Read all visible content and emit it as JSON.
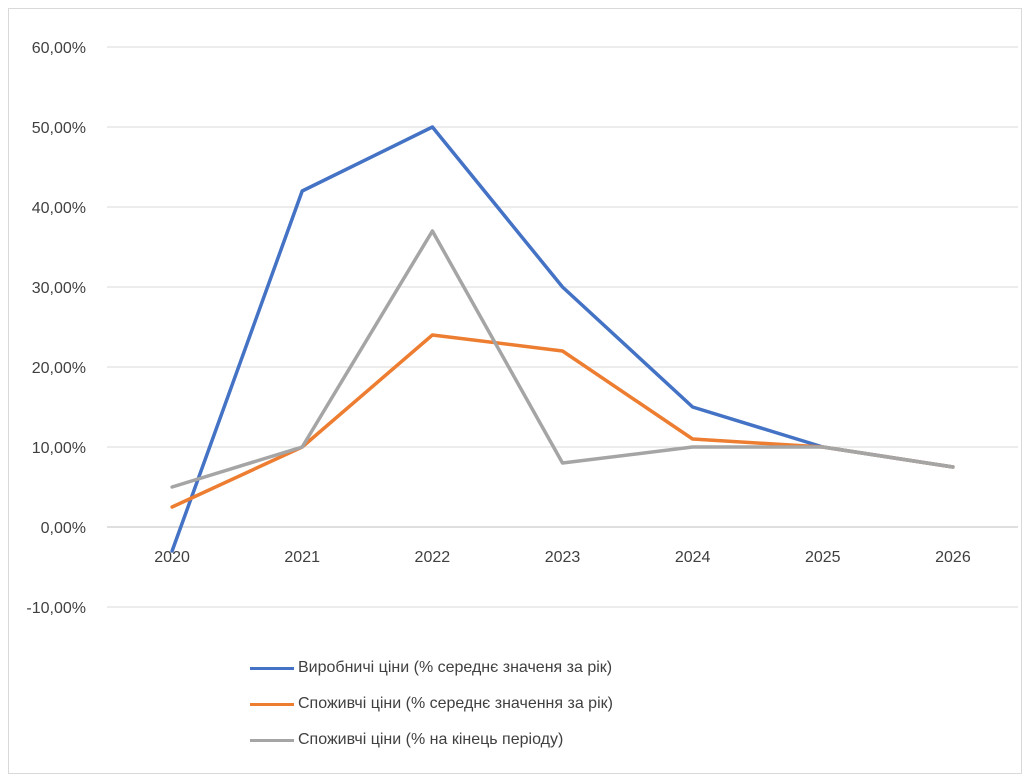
{
  "chart_data": {
    "type": "line",
    "title": "",
    "xlabel": "",
    "ylabel": "",
    "categories": [
      "2020",
      "2021",
      "2022",
      "2023",
      "2024",
      "2025",
      "2026"
    ],
    "ylim": [
      -0.1,
      0.6
    ],
    "y_ticks": [
      -0.1,
      0.0,
      0.1,
      0.2,
      0.3,
      0.4,
      0.5,
      0.6
    ],
    "y_tick_labels": [
      "-10,00%",
      "0,00%",
      "10,00%",
      "20,00%",
      "30,00%",
      "40,00%",
      "50,00%",
      "60,00%"
    ],
    "grid": true,
    "legend_position": "bottom",
    "series": [
      {
        "name": "Виробничі ціни (% середнє значеня за рік)",
        "color": "#4472c4",
        "values": [
          -0.03,
          0.42,
          0.5,
          0.3,
          0.15,
          0.1,
          0.075
        ]
      },
      {
        "name": "Споживчі ціни (% середнє значення за рік)",
        "color": "#ed7d31",
        "values": [
          0.025,
          0.1,
          0.24,
          0.22,
          0.11,
          0.1,
          0.075
        ]
      },
      {
        "name": "Споживчі ціни (% на кінець періоду)",
        "color": "#a5a5a5",
        "values": [
          0.05,
          0.1,
          0.37,
          0.08,
          0.1,
          0.1,
          0.075
        ]
      }
    ]
  }
}
